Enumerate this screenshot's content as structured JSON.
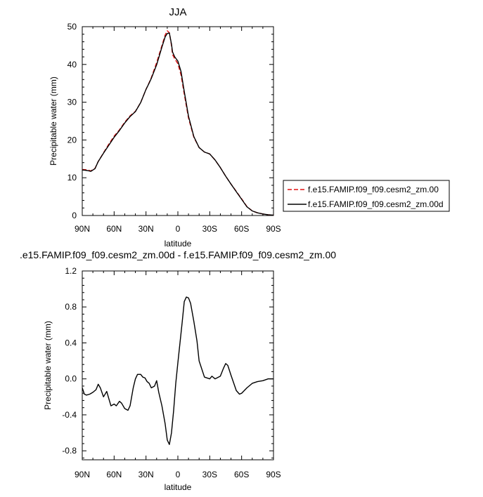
{
  "chart_data": [
    {
      "type": "line",
      "title": "JJA",
      "xlabel": "latitude",
      "ylabel": "Precipitable water (mm)",
      "xlim": [
        90,
        -90
      ],
      "ylim": [
        0,
        50
      ],
      "xticks": [
        90,
        60,
        30,
        0,
        -30,
        -60,
        -90
      ],
      "xtick_labels": [
        "90N",
        "60N",
        "30N",
        "0",
        "30S",
        "60S",
        "90S"
      ],
      "yticks": [
        0,
        10,
        20,
        30,
        40,
        50
      ],
      "ytick_labels": [
        "0",
        "10",
        "20",
        "30",
        "40",
        "50"
      ],
      "legend_position": "right",
      "series": [
        {
          "name": "f.e15.FAMIP.f09_f09.cesm2_zm.00",
          "color": "#e01010",
          "dash": true,
          "x": [
            90,
            85,
            82,
            78,
            75,
            70,
            65,
            60,
            55,
            50,
            45,
            40,
            35,
            30,
            27,
            25,
            20,
            15,
            12,
            10,
            8,
            6,
            5,
            3,
            0,
            -3,
            -6,
            -10,
            -15,
            -20,
            -25,
            -30,
            -35,
            -40,
            -45,
            -50,
            -55,
            -60,
            -65,
            -70,
            -75,
            -80,
            -85,
            -90
          ],
          "y": [
            12.2,
            12.1,
            11.8,
            12.5,
            14.3,
            16.6,
            18.9,
            21.0,
            22.7,
            24.7,
            26.4,
            27.6,
            29.9,
            33.4,
            35.2,
            36.5,
            40.5,
            45.0,
            47.8,
            48.9,
            48.4,
            45.0,
            42.6,
            41.5,
            40.2,
            37.2,
            32.1,
            25.8,
            20.7,
            18.0,
            16.8,
            16.3,
            14.7,
            12.7,
            10.4,
            8.3,
            6.4,
            4.4,
            2.4,
            1.2,
            0.7,
            0.4,
            0.2,
            0.1
          ]
        },
        {
          "name": "f.e15.FAMIP.f09_f09.cesm2_zm.00d",
          "color": "#000000",
          "dash": false,
          "x": [
            90,
            85,
            82,
            78,
            75,
            70,
            65,
            60,
            55,
            50,
            45,
            40,
            35,
            30,
            27,
            25,
            20,
            15,
            12,
            10,
            8,
            6,
            5,
            3,
            0,
            -3,
            -6,
            -10,
            -15,
            -20,
            -25,
            -30,
            -35,
            -40,
            -45,
            -50,
            -55,
            -60,
            -65,
            -70,
            -75,
            -80,
            -85,
            -90
          ],
          "y": [
            12.1,
            11.9,
            11.7,
            12.4,
            14.3,
            16.5,
            18.6,
            20.7,
            22.5,
            24.5,
            26.2,
            27.5,
            29.9,
            33.4,
            35.1,
            36.3,
            39.9,
            44.6,
            47.3,
            48.2,
            48.3,
            45.4,
            43.3,
            42.0,
            40.9,
            38.1,
            32.8,
            26.3,
            20.9,
            18.0,
            16.8,
            16.3,
            14.7,
            12.7,
            10.4,
            8.3,
            6.3,
            4.3,
            2.3,
            1.2,
            0.7,
            0.4,
            0.2,
            0.1
          ]
        }
      ]
    },
    {
      "type": "line",
      "title": ".e15.FAMIP.f09_f09.cesm2_zm.00d - f.e15.FAMIP.f09_f09.cesm2_zm.00",
      "xlabel": "latitude",
      "ylabel": "Precipitable water (mm)",
      "xlim": [
        90,
        -90
      ],
      "ylim": [
        -0.9,
        1.2
      ],
      "xticks": [
        90,
        60,
        30,
        0,
        -30,
        -60,
        -90
      ],
      "xtick_labels": [
        "90N",
        "60N",
        "30N",
        "0",
        "30S",
        "60S",
        "90S"
      ],
      "yticks": [
        -0.8,
        -0.4,
        0.0,
        0.4,
        0.8,
        1.2
      ],
      "ytick_labels": [
        "-0.8",
        "-0.4",
        "0.0",
        "0.4",
        "0.8",
        "1.2"
      ],
      "series": [
        {
          "name": "",
          "color": "#000000",
          "dash": false,
          "x": [
            90,
            88,
            86,
            83,
            80,
            77,
            75,
            73,
            70,
            67,
            65,
            63,
            60,
            58,
            55,
            53,
            50,
            47,
            45,
            42,
            40,
            38,
            35,
            33,
            31,
            29,
            27,
            25,
            22,
            20,
            18,
            15,
            12,
            10,
            8,
            6,
            4,
            2,
            0,
            -2,
            -4,
            -6,
            -8,
            -10,
            -12,
            -15,
            -18,
            -20,
            -25,
            -30,
            -32,
            -35,
            -40,
            -43,
            -45,
            -47,
            -50,
            -55,
            -58,
            -60,
            -65,
            -70,
            -75,
            -80,
            -85,
            -90
          ],
          "y": [
            -0.1,
            -0.17,
            -0.18,
            -0.17,
            -0.15,
            -0.12,
            -0.06,
            -0.1,
            -0.2,
            -0.14,
            -0.22,
            -0.3,
            -0.28,
            -0.3,
            -0.25,
            -0.27,
            -0.33,
            -0.35,
            -0.3,
            -0.1,
            0.0,
            0.05,
            0.05,
            0.02,
            0.01,
            -0.03,
            -0.05,
            -0.1,
            -0.08,
            -0.02,
            -0.15,
            -0.3,
            -0.5,
            -0.68,
            -0.73,
            -0.6,
            -0.35,
            -0.05,
            0.18,
            0.4,
            0.62,
            0.86,
            0.91,
            0.9,
            0.84,
            0.64,
            0.42,
            0.2,
            0.02,
            0.0,
            0.03,
            0.0,
            0.03,
            0.12,
            0.17,
            0.15,
            0.04,
            -0.13,
            -0.17,
            -0.16,
            -0.1,
            -0.05,
            -0.03,
            -0.02,
            0.0,
            0.0
          ]
        }
      ]
    }
  ]
}
